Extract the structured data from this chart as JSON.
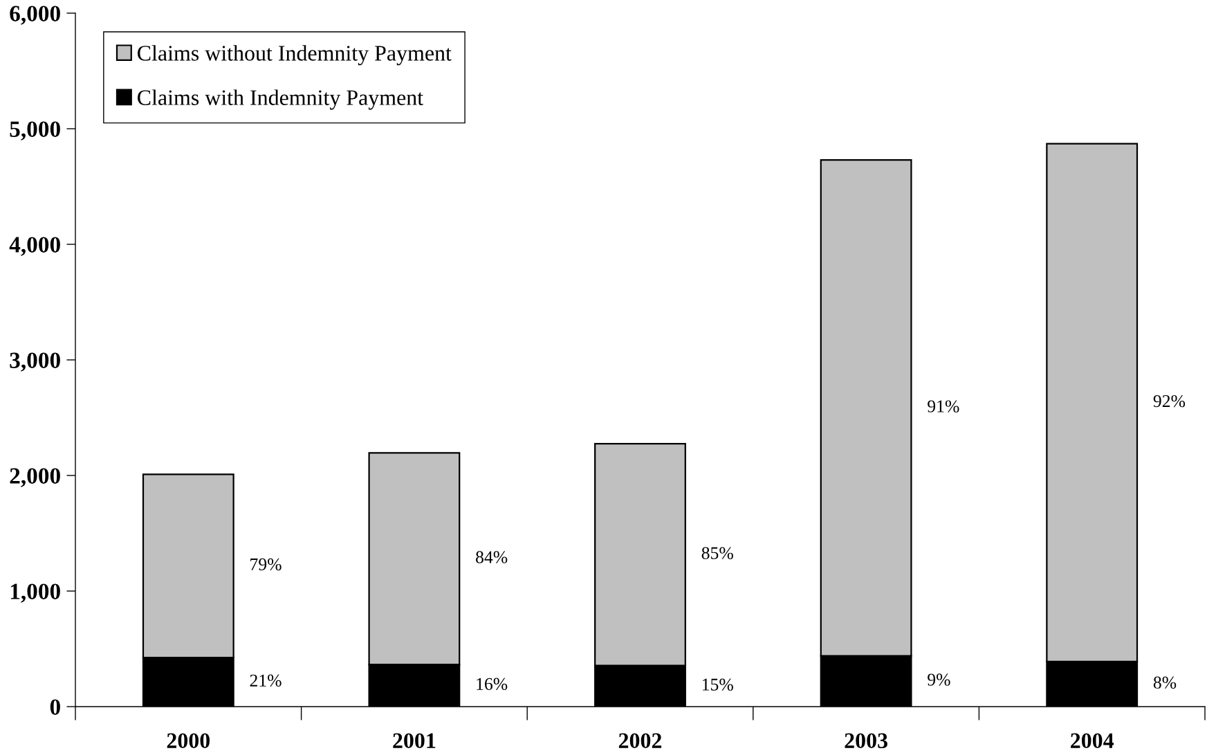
{
  "chart_data": {
    "type": "bar",
    "stacked": true,
    "categories": [
      "2000",
      "2001",
      "2002",
      "2003",
      "2004"
    ],
    "series": [
      {
        "name": "Claims with Indemnity Payment",
        "color": "#000000",
        "values": [
          425,
          365,
          355,
          440,
          390
        ]
      },
      {
        "name": "Claims without Indemnity Payment",
        "color": "#c0c0c0",
        "values": [
          1585,
          1830,
          1920,
          4290,
          4480
        ]
      }
    ],
    "annotations": [
      "79%",
      "21%",
      "84%",
      "16%",
      "85%",
      "15%",
      "91%",
      "9%",
      "92%",
      "8%"
    ],
    "ylim": [
      0,
      6000
    ],
    "yticks": [
      0,
      {
        "value": 1000,
        "label": "1,000"
      },
      {
        "value": 2000,
        "label": "2,000"
      },
      {
        "value": 3000,
        "label": "3,000"
      },
      {
        "value": 4000,
        "label": "4,000"
      },
      {
        "value": 5000,
        "label": "5,000"
      },
      {
        "value": 6000,
        "label": "6,000"
      }
    ],
    "grid": false,
    "legend": "top left"
  }
}
